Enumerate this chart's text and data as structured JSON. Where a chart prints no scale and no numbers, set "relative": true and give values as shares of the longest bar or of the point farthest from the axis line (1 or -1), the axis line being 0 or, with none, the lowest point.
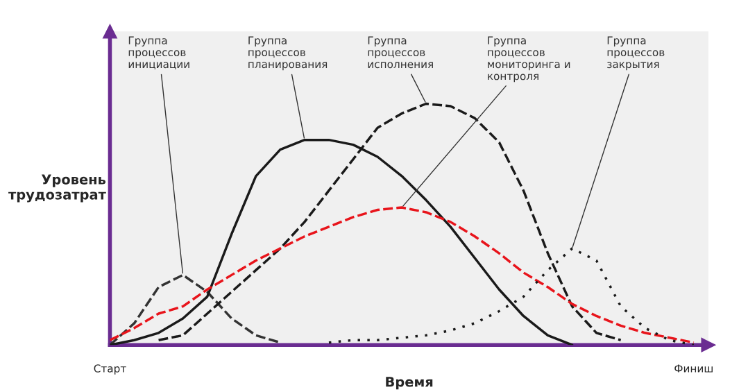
{
  "chart_data": {
    "type": "line",
    "relative": true,
    "xlabel": "Время",
    "ylabel": "Уровень\nтрудозатрат",
    "tick_labels": "x",
    "legend": false,
    "grid": false,
    "categories": [
      "Старт",
      null,
      null,
      null,
      null,
      null,
      null,
      null,
      null,
      null,
      null,
      null,
      null,
      null,
      null,
      null,
      null,
      null,
      null,
      null,
      null,
      null,
      null,
      null,
      "Финиш"
    ],
    "series": [
      {
        "name": "Группа\nпроцессов\nинициации",
        "color": "#333333",
        "line_style": "dashed",
        "values": [
          0,
          0.09,
          0.24,
          0.29,
          0.22,
          0.11,
          0.04,
          0.01,
          null,
          null,
          null,
          null,
          null,
          null,
          null,
          null,
          null,
          null,
          null,
          null,
          null,
          null,
          null,
          null,
          null
        ]
      },
      {
        "name": "Группа\nпроцессов\nпланирования",
        "color": "#1a1a1a",
        "line_style": "solid",
        "values": [
          0,
          0.02,
          0.05,
          0.11,
          0.2,
          0.46,
          0.7,
          0.81,
          0.85,
          0.85,
          0.83,
          0.78,
          0.7,
          0.6,
          0.49,
          0.36,
          0.23,
          0.12,
          0.04,
          0,
          null,
          null,
          null,
          null,
          null
        ]
      },
      {
        "name": "Группа\nпроцессов\nисполнения",
        "color": "#1a1a1a",
        "line_style": "dashed",
        "values": [
          null,
          null,
          0.02,
          0.04,
          0.13,
          0.22,
          0.31,
          0.4,
          0.51,
          0.64,
          0.77,
          0.9,
          0.96,
          1,
          0.99,
          0.94,
          0.84,
          0.64,
          0.38,
          0.16,
          0.05,
          0.02,
          null,
          null,
          null
        ]
      },
      {
        "name": "Группа\nпроцессов\nмониторинга и\nконтроля",
        "color": "#e8141b",
        "line_style": "dashed",
        "values": [
          0.02,
          0.07,
          0.13,
          0.16,
          0.23,
          0.29,
          0.35,
          0.4,
          0.45,
          0.49,
          0.53,
          0.56,
          0.57,
          0.55,
          0.51,
          0.45,
          0.38,
          0.3,
          0.24,
          0.17,
          0.12,
          0.08,
          0.05,
          0.03,
          0.01
        ]
      },
      {
        "name": "Группа\nпроцессов\nзакрытия",
        "color": "#1a1a1a",
        "line_style": "dotted",
        "values": [
          null,
          null,
          null,
          null,
          null,
          null,
          null,
          null,
          null,
          0.01,
          0.02,
          0.02,
          0.03,
          0.04,
          0.06,
          0.09,
          0.14,
          0.2,
          0.31,
          0.4,
          0.35,
          0.16,
          0.07,
          0.02,
          0
        ]
      }
    ]
  }
}
